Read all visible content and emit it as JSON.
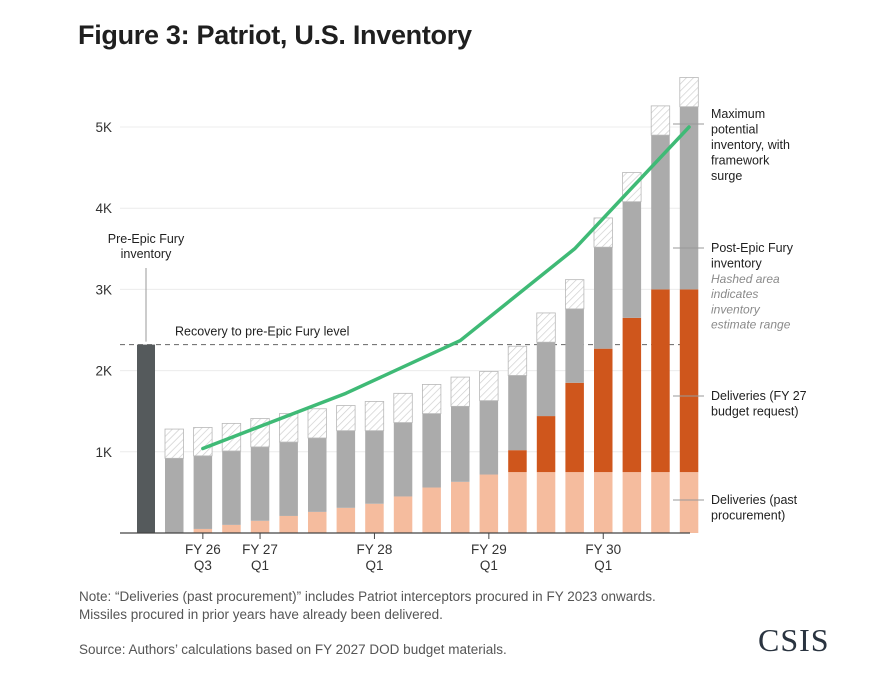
{
  "title": "Figure 3: Patriot, U.S. Inventory",
  "note": {
    "line1": "Note: “Deliveries (past procurement)” includes Patriot interceptors procured in FY 2023 onwards.",
    "line2": "Missiles procured in prior years have already been delivered.",
    "source": "Source: Authors’ calculations based on FY 2027 DOD budget materials."
  },
  "logo": "CSIS",
  "colors": {
    "past_procurement": "#f5bc9e",
    "budget_request": "#cf561c",
    "post_epic_fury": "#ababab",
    "pre_epic_fury": "#555a5c",
    "max_potential_line": "#3fba76",
    "hatch": "#c8c8c8"
  },
  "chart_data": {
    "type": "bar",
    "title": "Figure 3: Patriot, U.S. Inventory",
    "ylim": [
      0,
      5000
    ],
    "yticks": [
      "1K",
      "2K",
      "3K",
      "4K",
      "5K"
    ],
    "ytick_values": [
      1000,
      2000,
      3000,
      4000,
      5000
    ],
    "xtick_labels": [
      {
        "line1": "FY 26",
        "line2": "Q3",
        "bar_index": 1
      },
      {
        "line1": "FY 27",
        "line2": "Q1",
        "bar_index": 3
      },
      {
        "line1": "FY 28",
        "line2": "Q1",
        "bar_index": 7
      },
      {
        "line1": "FY 29",
        "line2": "Q1",
        "bar_index": 11
      },
      {
        "line1": "FY 30",
        "line2": "Q1",
        "bar_index": 15
      }
    ],
    "pre_epic_fury": {
      "label": "Pre-Epic Fury inventory",
      "label_line1": "Pre-Epic Fury",
      "label_line2": "inventory",
      "value": 2320
    },
    "reference_line": {
      "label": "Recovery to pre-Epic Fury level",
      "value": 2320
    },
    "series": [
      {
        "name": "Deliveries (past procurement)",
        "values": [
          0,
          50,
          100,
          150,
          210,
          260,
          310,
          360,
          450,
          560,
          630,
          720,
          750,
          750,
          750,
          750,
          750,
          750,
          750
        ]
      },
      {
        "name": "Deliveries (FY 27 budget request)",
        "values": [
          0,
          0,
          0,
          0,
          0,
          0,
          0,
          0,
          0,
          0,
          0,
          0,
          270,
          690,
          1100,
          1520,
          1900,
          2250,
          2250
        ]
      },
      {
        "name": "Post-Epic Fury inventory",
        "values": [
          920,
          900,
          910,
          910,
          910,
          910,
          950,
          900,
          910,
          910,
          930,
          910,
          920,
          910,
          910,
          1250,
          1430,
          1900,
          2250
        ]
      },
      {
        "name": "Inventory estimate range (hashed)",
        "values": [
          360,
          350,
          340,
          350,
          350,
          360,
          310,
          360,
          360,
          360,
          360,
          360,
          360,
          360,
          360,
          360,
          360,
          360,
          360
        ]
      }
    ],
    "max_potential_line": {
      "name": "Maximum potential inventory, with framework surge",
      "points": [
        [
          1,
          1040
        ],
        [
          6,
          1720
        ],
        [
          10,
          2370
        ],
        [
          14,
          3500
        ],
        [
          18,
          5000
        ]
      ]
    },
    "legend": [
      {
        "lines": [
          "Maximum",
          "potential",
          "inventory, with",
          "framework",
          "surge"
        ],
        "italic": []
      },
      {
        "lines": [
          "Post-Epic Fury",
          "inventory"
        ],
        "italic": [
          "Hashed area",
          "indicates",
          "inventory",
          "estimate range"
        ]
      },
      {
        "lines": [
          "Deliveries (FY 27",
          "budget request)"
        ],
        "italic": []
      },
      {
        "lines": [
          "Deliveries (past",
          "procurement)"
        ],
        "italic": []
      }
    ]
  }
}
